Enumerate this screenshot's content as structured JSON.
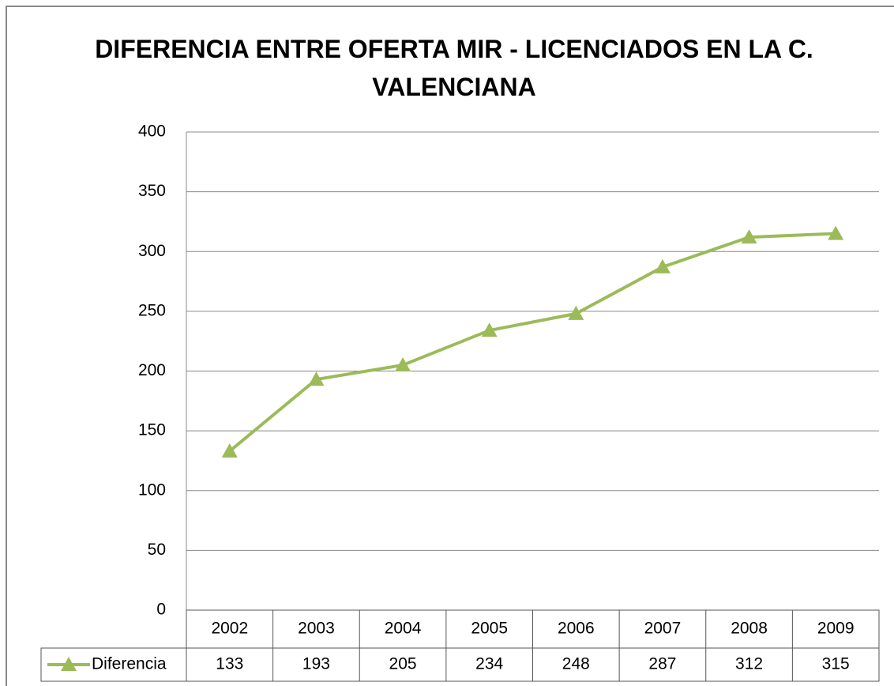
{
  "chart_data": {
    "type": "line",
    "title": "DIFERENCIA ENTRE OFERTA MIR - LICENCIADOS EN LA C. VALENCIANA",
    "categories": [
      "2002",
      "2003",
      "2004",
      "2005",
      "2006",
      "2007",
      "2008",
      "2009"
    ],
    "series": [
      {
        "name": "Diferencia",
        "color": "#9bbb59",
        "values": [
          133,
          193,
          205,
          234,
          248,
          287,
          312,
          315
        ]
      }
    ],
    "ylim": [
      0,
      400
    ],
    "yticks": [
      0,
      50,
      100,
      150,
      200,
      250,
      300,
      350,
      400
    ],
    "grid": true,
    "data_table": true
  }
}
